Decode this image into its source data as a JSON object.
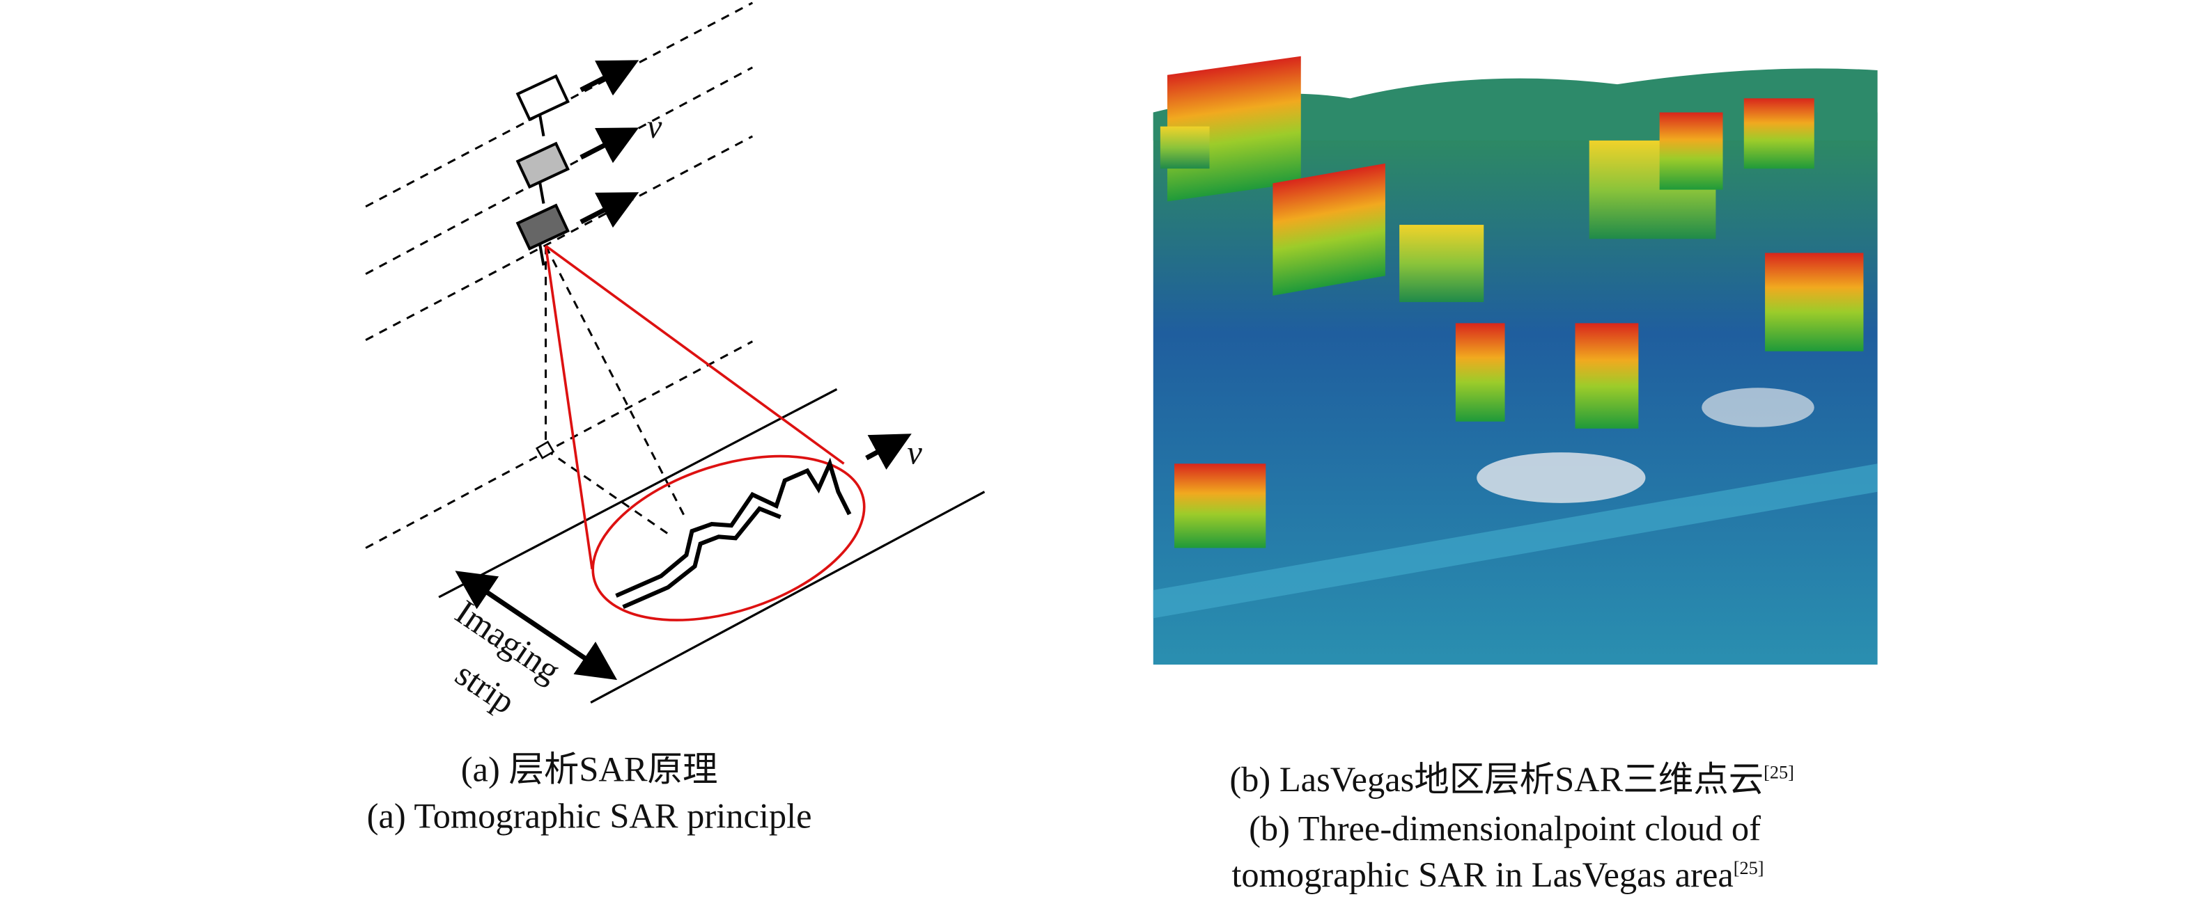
{
  "figure_a": {
    "labels": {
      "velocity_top": "v",
      "velocity_ground": "v",
      "strip": [
        "Imaging",
        "strip"
      ]
    },
    "caption_cn": "(a) 层析SAR原理",
    "caption_en": "(a) Tomographic SAR principle"
  },
  "figure_b": {
    "caption_cn": "(b) LasVegas地区层析SAR三维点云",
    "caption_cn_ref": "[25]",
    "caption_en": [
      "(b) Three-dimensionalpoint cloud of",
      "tomographic SAR in LasVegas area"
    ],
    "caption_en_ref": "[25]"
  }
}
